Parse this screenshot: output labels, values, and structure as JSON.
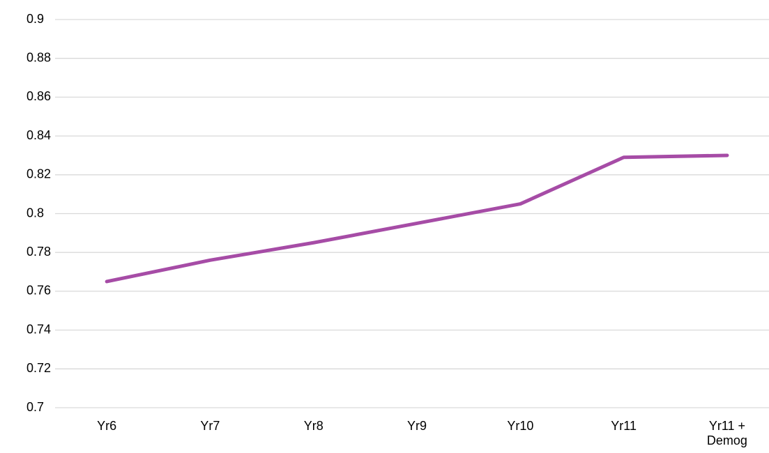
{
  "chart_data": {
    "type": "line",
    "categories": [
      "Yr6",
      "Yr7",
      "Yr8",
      "Yr9",
      "Yr10",
      "Yr11",
      "Yr11 + Demog"
    ],
    "series": [
      {
        "name": null,
        "color": "#a64ca6",
        "values": [
          0.765,
          0.776,
          0.785,
          0.795,
          0.805,
          0.829,
          0.83
        ]
      }
    ],
    "ylim": [
      0.7,
      0.9
    ],
    "yticks": [
      0.7,
      0.72,
      0.74,
      0.76,
      0.78,
      0.8,
      0.82,
      0.84,
      0.86,
      0.88,
      0.9
    ],
    "grid": true
  }
}
